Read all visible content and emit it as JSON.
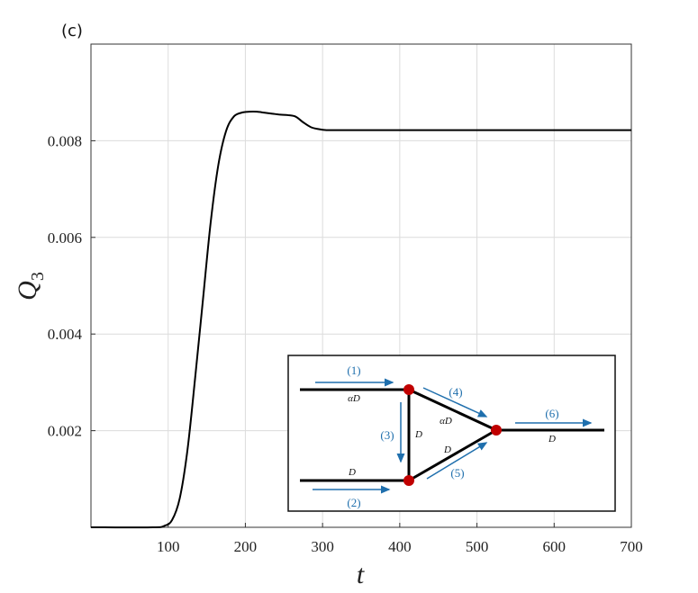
{
  "panel_label": "(c)",
  "chart_data": {
    "type": "line",
    "title": "",
    "xlabel": "t",
    "ylabel_main": "Q",
    "ylabel_sub": "3",
    "xlim": [
      0,
      700
    ],
    "ylim": [
      0,
      0.01
    ],
    "x_ticks": [
      100,
      200,
      300,
      400,
      500,
      600,
      700
    ],
    "y_ticks": [
      0.002,
      0.004,
      0.006,
      0.008
    ],
    "y_tick_labels": [
      "0.002",
      "0.004",
      "0.006",
      "0.008"
    ],
    "grid": true,
    "series": [
      {
        "color": "#000000",
        "x": [
          0,
          80,
          95,
          105,
          115,
          125,
          135,
          145,
          155,
          165,
          175,
          185,
          195,
          205,
          215,
          225,
          235,
          245,
          255,
          265,
          275,
          285,
          295,
          305,
          320,
          400,
          500,
          600,
          700
        ],
        "y": [
          0,
          0,
          3e-05,
          0.00015,
          0.0006,
          0.0016,
          0.0031,
          0.0047,
          0.0063,
          0.0075,
          0.0082,
          0.0085,
          0.00858,
          0.0086,
          0.0086,
          0.00858,
          0.00856,
          0.00854,
          0.00853,
          0.0085,
          0.00838,
          0.00828,
          0.00824,
          0.00822,
          0.00822,
          0.00822,
          0.00822,
          0.00822,
          0.00822
        ]
      }
    ]
  },
  "inset": {
    "blue_color": "#1f6fad",
    "node_color": "#c00000",
    "pipe_labels": [
      "(1)",
      "(2)",
      "(3)",
      "(4)",
      "(5)",
      "(6)"
    ],
    "diameter_labels": [
      "αD",
      "D",
      "D",
      "αD",
      "D",
      "D"
    ]
  }
}
